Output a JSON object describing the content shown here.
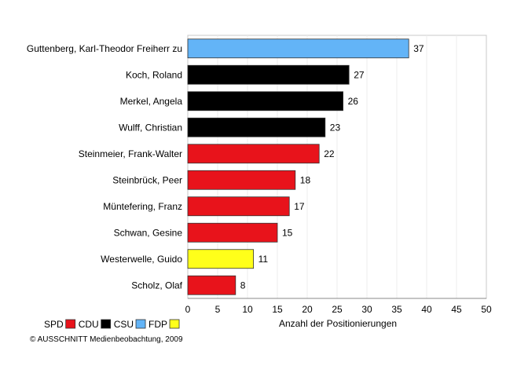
{
  "chart_data": {
    "type": "bar",
    "orientation": "horizontal",
    "categories": [
      "Guttenberg, Karl-Theodor Freiherr zu",
      "Koch, Roland",
      "Merkel, Angela",
      "Wulff, Christian",
      "Steinmeier, Frank-Walter",
      "Steinbrück, Peer",
      "Müntefering, Franz",
      "Schwan, Gesine",
      "Westerwelle, Guido",
      "Scholz, Olaf"
    ],
    "values": [
      37,
      27,
      26,
      23,
      22,
      18,
      17,
      15,
      11,
      8
    ],
    "parties": [
      "CSU",
      "CDU",
      "CDU",
      "CDU",
      "SPD",
      "SPD",
      "SPD",
      "SPD",
      "FDP",
      "SPD"
    ],
    "xlabel": "Anzahl der Positionierungen",
    "xlim": [
      0,
      50
    ],
    "xticks": [
      0,
      5,
      10,
      15,
      20,
      25,
      30,
      35,
      40,
      45,
      50
    ],
    "grid": true,
    "legend": {
      "placement": "bottom-left",
      "entries": [
        {
          "label": "SPD",
          "color": "#e8131b"
        },
        {
          "label": "CDU",
          "color": "#000000"
        },
        {
          "label": "CSU",
          "color": "#63b4f7"
        },
        {
          "label": "FDP",
          "color": "#ffff1a"
        }
      ]
    },
    "party_colors": {
      "SPD": "#e8131b",
      "CDU": "#000000",
      "CSU": "#63b4f7",
      "FDP": "#ffff1a"
    }
  },
  "footer": {
    "copyright": "© AUSSCHNITT Medienbeobachtung, 2009"
  }
}
